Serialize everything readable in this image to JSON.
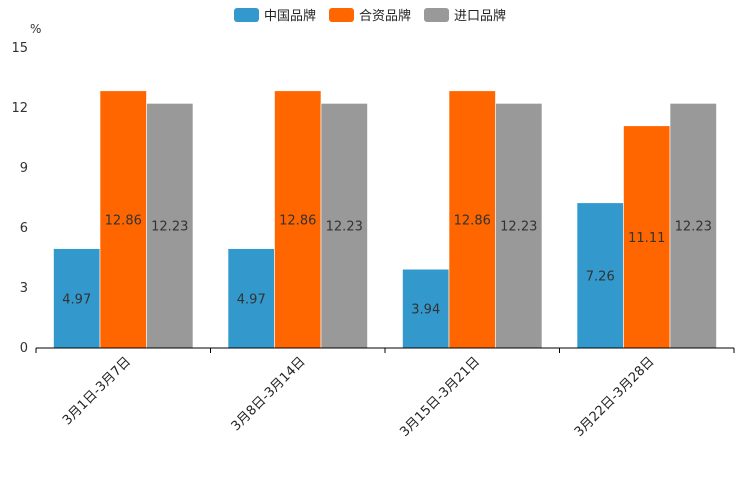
{
  "chart_data": {
    "type": "bar",
    "unit_label": "%",
    "categories": [
      "3月1日-3月7日",
      "3月8日-3月14日",
      "3月15日-3月21日",
      "3月22日-3月28日"
    ],
    "series": [
      {
        "name": "中国品牌",
        "color": "#3399CC",
        "values": [
          4.97,
          4.97,
          3.94,
          7.26
        ]
      },
      {
        "name": "合资品牌",
        "color": "#FF6600",
        "values": [
          12.86,
          12.86,
          12.86,
          11.11
        ]
      },
      {
        "name": "进口品牌",
        "color": "#999999",
        "values": [
          12.23,
          12.23,
          12.23,
          12.23
        ]
      }
    ],
    "ylim": [
      0,
      15
    ],
    "yticks": [
      0,
      3,
      6,
      9,
      12,
      15
    ],
    "legend_position": "top-center",
    "grid": false
  }
}
